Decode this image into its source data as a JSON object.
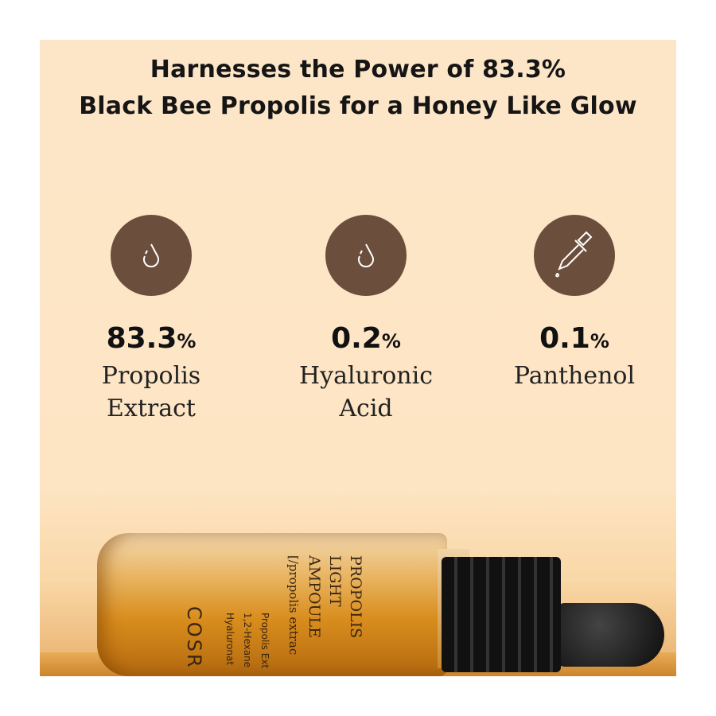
{
  "headline": {
    "line1": "Harnesses the Power of 83.3%",
    "line2": "Black Bee Propolis for a Honey Like Glow"
  },
  "colors": {
    "background": "#fde6c8",
    "icon_circle": "#6c4e3c",
    "text": "#151515"
  },
  "ingredients": [
    {
      "icon": "water-drop-icon",
      "value": "83.3",
      "unit": "%",
      "line1": "Propolis",
      "line2": "Extract"
    },
    {
      "icon": "water-drop-icon",
      "value": "0.2",
      "unit": "%",
      "line1": "Hyaluronic",
      "line2": "Acid"
    },
    {
      "icon": "dropper-icon",
      "value": "0.1",
      "unit": "%",
      "line1": "Panthenol",
      "line2": ""
    }
  ],
  "bottle": {
    "brand": "COSR",
    "name1": "PROPOLIS",
    "name2": "LIGHT",
    "name3": "AMPOULE",
    "sub": "[/propolis extrac",
    "ing1": "Propolis Ext",
    "ing2": "1,2-Hexane",
    "ing3": "Hyaluronat"
  }
}
